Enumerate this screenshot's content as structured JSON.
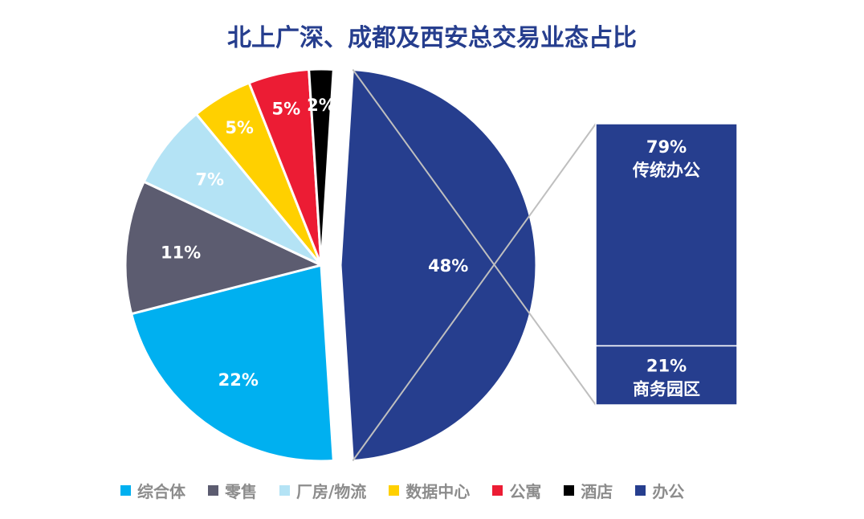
{
  "chart_data": {
    "type": "pie",
    "title": "北上广深、成都及西安总交易业态占比",
    "slices": [
      {
        "name": "综合体",
        "value": 22,
        "label": "22%",
        "color": "#00b0f0"
      },
      {
        "name": "零售",
        "value": 11,
        "label": "11%",
        "color": "#5c5c70"
      },
      {
        "name": "厂房/物流",
        "value": 7,
        "label": "7%",
        "color": "#b4e3f5"
      },
      {
        "name": "数据中心",
        "value": 5,
        "label": "5%",
        "color": "#ffd000"
      },
      {
        "name": "公寓",
        "value": 5,
        "label": "5%",
        "color": "#ec1c34"
      },
      {
        "name": "酒店",
        "value": 2,
        "label": "2%",
        "color": "#000000"
      },
      {
        "name": "办公",
        "value": 48,
        "label": "48%",
        "color": "#263e8e"
      }
    ],
    "breakdown": {
      "parent": "办公",
      "segments": [
        {
          "name": "传统办公",
          "value": 79,
          "label": "79%"
        },
        {
          "name": "商务园区",
          "value": 21,
          "label": "21%"
        }
      ]
    },
    "legend_position": "bottom",
    "label_color": "#ffffff",
    "connector_color": "#bfbfbf"
  }
}
